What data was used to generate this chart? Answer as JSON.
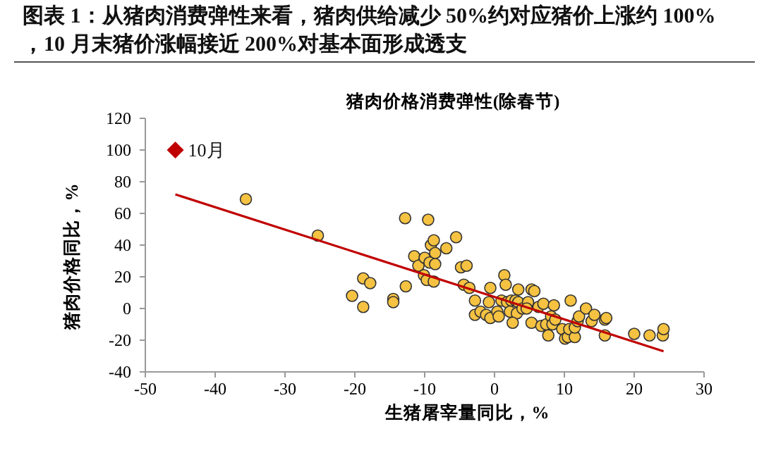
{
  "chart_data": {
    "type": "scatter",
    "title": "图表 1：从猪肉消费弹性来看，猪肉供给减少 50%约对应猪价上涨约 100%，10 月末猪价涨幅接近 200%对基本面形成透支",
    "subtitle": "猪肉价格消费弹性(除春节)",
    "xlabel": "生猪屠宰量同比，%",
    "ylabel": "猪肉价格同比，%",
    "xlim": [
      -50,
      30
    ],
    "xticks": [
      -50,
      -40,
      -30,
      -20,
      -10,
      0,
      10,
      20,
      30
    ],
    "ylim": [
      -40,
      120
    ],
    "yticks": [
      -40,
      -20,
      0,
      20,
      40,
      60,
      80,
      100,
      120
    ],
    "grid": false,
    "legend": false,
    "series": [
      {
        "color": "#f5c242",
        "marker": "circle",
        "x": [
          -35.6,
          -25.3,
          -18.8,
          -17.8,
          -20.4,
          -18.8,
          -14.5,
          -14.5,
          -12.8,
          -12.7,
          -9.5,
          -11.5,
          -10.9,
          -10,
          -9.1,
          -8.7,
          -8.5,
          -9.3,
          -8.5,
          -10.1,
          -9.7,
          -8.7,
          -6.9,
          -5.5,
          -4.8,
          -4,
          -4.4,
          -3.6,
          -2.8,
          -2.8,
          -2,
          -1.2,
          -0.6,
          -0.8,
          -0.6,
          0.4,
          0.6,
          1.4,
          1.6,
          1,
          1.8,
          2.4,
          3,
          3.4,
          3.4,
          2.2,
          3.2,
          2.6,
          4,
          4.8,
          5.3,
          5.7,
          4.6,
          5.3,
          6.3,
          7,
          6.7,
          7.4,
          7.7,
          8.5,
          8.1,
          8.3,
          8.7,
          9.7,
          10.1,
          10.5,
          10.7,
          10.9,
          11.5,
          11.5,
          11.9,
          12.1,
          13.1,
          13.9,
          14.3,
          15.8,
          16,
          15.8,
          20,
          22.2,
          24.1,
          24.2
        ],
        "values": [
          69,
          46,
          19,
          16,
          8,
          1,
          6,
          4,
          57,
          14,
          56,
          33,
          27,
          32,
          40,
          43,
          35,
          29,
          28,
          21,
          18,
          17,
          38,
          45,
          26,
          27,
          15,
          13,
          5,
          -4,
          -2,
          -4,
          13,
          4,
          -6,
          -2,
          -5,
          21,
          15,
          5,
          4,
          5,
          5,
          12,
          4,
          -2,
          -3,
          -9,
          0,
          4,
          12,
          11,
          0,
          -9,
          1,
          3,
          -11,
          -10,
          -17,
          2,
          -5,
          -10,
          -7,
          -13,
          -19,
          -18,
          -13,
          5,
          -18,
          -12,
          -8,
          -5,
          0,
          -8,
          -4,
          -7,
          -6,
          -17,
          -16,
          -17,
          -17,
          -13
        ]
      },
      {
        "type": "line",
        "color": "#c00000",
        "marker": "none",
        "x": [
          -45.7,
          24.2
        ],
        "values": [
          72,
          -27
        ]
      },
      {
        "name": "10月",
        "color": "#c00000",
        "marker": "diamond",
        "x": [
          -45.7
        ],
        "values": [
          100
        ]
      }
    ]
  }
}
